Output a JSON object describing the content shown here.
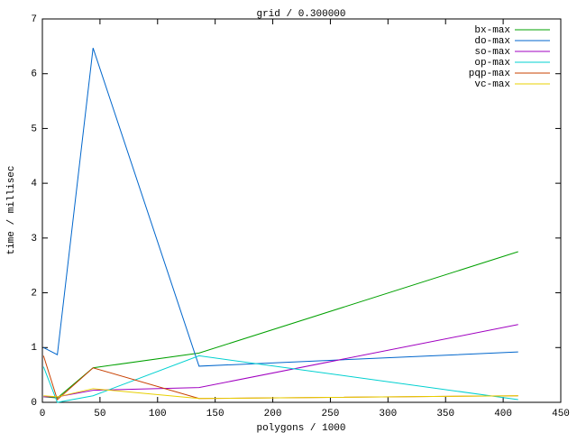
{
  "chart_data": {
    "type": "line",
    "title": "grid / 0.300000",
    "x_label": "polygons / 1000",
    "y_label": "time / millisec",
    "x": [
      1,
      13,
      44,
      136,
      413
    ],
    "series": [
      {
        "name": "bx-max",
        "color": "#00a000",
        "values": [
          0.1,
          0.08,
          0.63,
          0.9,
          2.75
        ]
      },
      {
        "name": "do-max",
        "color": "#0066cc",
        "values": [
          1.0,
          0.87,
          6.47,
          0.66,
          0.92
        ]
      },
      {
        "name": "so-max",
        "color": "#a000c0",
        "values": [
          0.1,
          0.1,
          0.22,
          0.27,
          1.42
        ]
      },
      {
        "name": "op-max",
        "color": "#00d0d0",
        "values": [
          0.65,
          0.0,
          0.12,
          0.85,
          0.05
        ]
      },
      {
        "name": "pqp-max",
        "color": "#c84000",
        "values": [
          0.85,
          0.05,
          0.63,
          0.07,
          0.12
        ]
      },
      {
        "name": "vc-max",
        "color": "#e8d000",
        "values": [
          0.12,
          0.1,
          0.25,
          0.07,
          0.12
        ]
      }
    ],
    "xlim": [
      0,
      450
    ],
    "xticks": [
      0,
      50,
      100,
      150,
      200,
      250,
      300,
      350,
      400,
      450
    ],
    "ylim": [
      0,
      7
    ],
    "yticks": [
      0,
      1,
      2,
      3,
      4,
      5,
      6,
      7
    ],
    "grid": false,
    "legend": "top-right"
  }
}
